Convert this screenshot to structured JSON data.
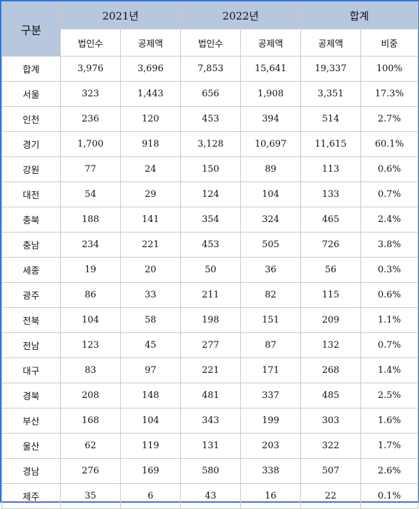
{
  "header": {
    "category": "구분",
    "groups": [
      "2021년",
      "2022년",
      "합계"
    ],
    "subs": [
      "법인수",
      "공제액",
      "법인수",
      "공제액",
      "공제액",
      "비중"
    ]
  },
  "rows": [
    {
      "region": "합계",
      "cells": [
        "3,976",
        "3,696",
        "7,853",
        "15,641",
        "19,337",
        "100%"
      ]
    },
    {
      "region": "서울",
      "cells": [
        "323",
        "1,443",
        "656",
        "1,908",
        "3,351",
        "17.3%"
      ]
    },
    {
      "region": "인천",
      "cells": [
        "236",
        "120",
        "453",
        "394",
        "514",
        "2.7%"
      ]
    },
    {
      "region": "경기",
      "cells": [
        "1,700",
        "918",
        "3,128",
        "10,697",
        "11,615",
        "60.1%"
      ]
    },
    {
      "region": "강원",
      "cells": [
        "77",
        "24",
        "150",
        "89",
        "113",
        "0.6%"
      ]
    },
    {
      "region": "대전",
      "cells": [
        "54",
        "29",
        "124",
        "104",
        "133",
        "0.7%"
      ]
    },
    {
      "region": "충북",
      "cells": [
        "188",
        "141",
        "354",
        "324",
        "465",
        "2.4%"
      ]
    },
    {
      "region": "충남",
      "cells": [
        "234",
        "221",
        "453",
        "505",
        "726",
        "3.8%"
      ]
    },
    {
      "region": "세종",
      "cells": [
        "19",
        "20",
        "50",
        "36",
        "56",
        "0.3%"
      ]
    },
    {
      "region": "광주",
      "cells": [
        "86",
        "33",
        "211",
        "82",
        "115",
        "0.6%"
      ]
    },
    {
      "region": "전북",
      "cells": [
        "104",
        "58",
        "198",
        "151",
        "209",
        "1.1%"
      ]
    },
    {
      "region": "전남",
      "cells": [
        "123",
        "45",
        "277",
        "87",
        "132",
        "0.7%"
      ]
    },
    {
      "region": "대구",
      "cells": [
        "83",
        "97",
        "221",
        "171",
        "268",
        "1.4%"
      ]
    },
    {
      "region": "경북",
      "cells": [
        "208",
        "148",
        "481",
        "337",
        "485",
        "2.5%"
      ]
    },
    {
      "region": "부산",
      "cells": [
        "168",
        "104",
        "343",
        "199",
        "303",
        "1.6%"
      ]
    },
    {
      "region": "울산",
      "cells": [
        "62",
        "119",
        "131",
        "203",
        "322",
        "1.7%"
      ]
    },
    {
      "region": "경남",
      "cells": [
        "276",
        "169",
        "580",
        "338",
        "507",
        "2.6%"
      ]
    },
    {
      "region": "제주",
      "cells": [
        "35",
        "6",
        "43",
        "16",
        "22",
        "0.1%"
      ]
    }
  ]
}
